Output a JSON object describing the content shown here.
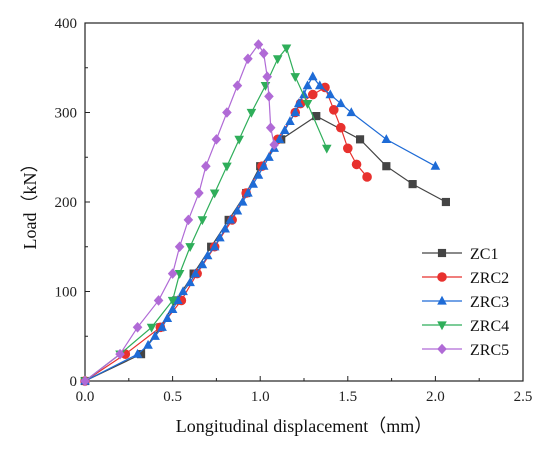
{
  "chart_data": {
    "type": "line",
    "title": "",
    "xlabel": "Longitudinal displacement（mm）",
    "ylabel": "Load（kN）",
    "xlim": [
      0,
      2.5
    ],
    "ylim": [
      0,
      400
    ],
    "xticks": [
      0.0,
      0.5,
      1.0,
      1.5,
      2.0,
      2.5
    ],
    "yticks": [
      0,
      100,
      200,
      300,
      400
    ],
    "xtick_labels": [
      "0.0",
      "0.5",
      "1.0",
      "1.5",
      "2.0",
      "2.5"
    ],
    "ytick_labels": [
      "0",
      "100",
      "200",
      "300",
      "400"
    ],
    "grid": false,
    "legend_position": "right",
    "series": [
      {
        "name": "ZC1",
        "color": "#444444",
        "marker": "square",
        "points": [
          [
            0,
            0
          ],
          [
            0.32,
            30
          ],
          [
            0.43,
            60
          ],
          [
            0.52,
            90
          ],
          [
            0.62,
            120
          ],
          [
            0.72,
            150
          ],
          [
            0.82,
            180
          ],
          [
            0.92,
            210
          ],
          [
            1.0,
            240
          ],
          [
            1.12,
            270
          ],
          [
            1.32,
            296
          ],
          [
            1.57,
            270
          ],
          [
            1.72,
            240
          ],
          [
            1.87,
            220
          ],
          [
            2.06,
            200
          ]
        ]
      },
      {
        "name": "ZRC2",
        "color": "#e8312e",
        "marker": "circle",
        "points": [
          [
            0,
            0
          ],
          [
            0.23,
            30
          ],
          [
            0.43,
            60
          ],
          [
            0.55,
            90
          ],
          [
            0.64,
            120
          ],
          [
            0.74,
            150
          ],
          [
            0.84,
            180
          ],
          [
            0.92,
            210
          ],
          [
            1.01,
            240
          ],
          [
            1.1,
            270
          ],
          [
            1.2,
            300
          ],
          [
            1.23,
            310
          ],
          [
            1.3,
            320
          ],
          [
            1.37,
            328
          ],
          [
            1.42,
            303
          ],
          [
            1.46,
            283
          ],
          [
            1.5,
            260
          ],
          [
            1.55,
            242
          ],
          [
            1.61,
            228
          ]
        ]
      },
      {
        "name": "ZRC3",
        "color": "#1e6bd6",
        "marker": "triangle-up",
        "points": [
          [
            0,
            0
          ],
          [
            0.3,
            30
          ],
          [
            0.36,
            40
          ],
          [
            0.4,
            50
          ],
          [
            0.44,
            60
          ],
          [
            0.47,
            70
          ],
          [
            0.5,
            80
          ],
          [
            0.53,
            90
          ],
          [
            0.56,
            100
          ],
          [
            0.6,
            110
          ],
          [
            0.63,
            120
          ],
          [
            0.67,
            130
          ],
          [
            0.7,
            140
          ],
          [
            0.74,
            150
          ],
          [
            0.77,
            160
          ],
          [
            0.8,
            170
          ],
          [
            0.83,
            180
          ],
          [
            0.87,
            190
          ],
          [
            0.9,
            200
          ],
          [
            0.93,
            210
          ],
          [
            0.96,
            220
          ],
          [
            0.99,
            230
          ],
          [
            1.02,
            240
          ],
          [
            1.05,
            250
          ],
          [
            1.08,
            260
          ],
          [
            1.11,
            270
          ],
          [
            1.14,
            280
          ],
          [
            1.17,
            290
          ],
          [
            1.2,
            300
          ],
          [
            1.22,
            310
          ],
          [
            1.25,
            320
          ],
          [
            1.27,
            330
          ],
          [
            1.3,
            340
          ],
          [
            1.34,
            330
          ],
          [
            1.4,
            320
          ],
          [
            1.46,
            310
          ],
          [
            1.52,
            300
          ],
          [
            1.72,
            270
          ],
          [
            2.0,
            240
          ]
        ]
      },
      {
        "name": "ZRC4",
        "color": "#2fae5a",
        "marker": "triangle-down",
        "points": [
          [
            0,
            0
          ],
          [
            0.2,
            30
          ],
          [
            0.38,
            60
          ],
          [
            0.5,
            90
          ],
          [
            0.54,
            120
          ],
          [
            0.6,
            150
          ],
          [
            0.67,
            180
          ],
          [
            0.74,
            210
          ],
          [
            0.81,
            240
          ],
          [
            0.88,
            270
          ],
          [
            0.95,
            300
          ],
          [
            1.03,
            330
          ],
          [
            1.1,
            360
          ],
          [
            1.15,
            372
          ],
          [
            1.2,
            340
          ],
          [
            1.27,
            310
          ],
          [
            1.38,
            260
          ]
        ]
      },
      {
        "name": "ZRC5",
        "color": "#b06ad6",
        "marker": "diamond",
        "points": [
          [
            0,
            0
          ],
          [
            0.2,
            30
          ],
          [
            0.3,
            60
          ],
          [
            0.42,
            90
          ],
          [
            0.5,
            120
          ],
          [
            0.54,
            150
          ],
          [
            0.59,
            180
          ],
          [
            0.65,
            210
          ],
          [
            0.69,
            240
          ],
          [
            0.75,
            270
          ],
          [
            0.81,
            300
          ],
          [
            0.87,
            330
          ],
          [
            0.93,
            360
          ],
          [
            0.99,
            376
          ],
          [
            1.02,
            366
          ],
          [
            1.04,
            340
          ],
          [
            1.05,
            318
          ],
          [
            1.06,
            283
          ],
          [
            1.08,
            264
          ]
        ]
      }
    ]
  }
}
